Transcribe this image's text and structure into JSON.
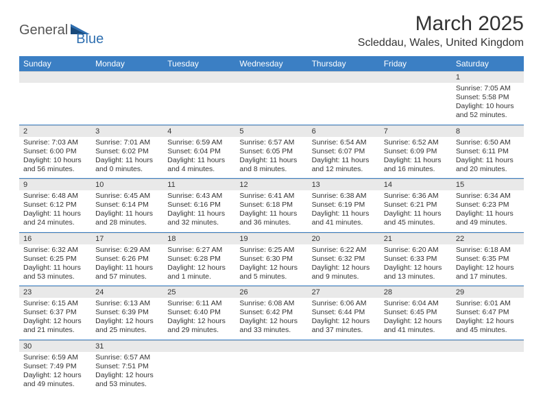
{
  "logo": {
    "text1": "General",
    "text2": "Blue"
  },
  "title": "March 2025",
  "location": "Scleddau, Wales, United Kingdom",
  "colors": {
    "header_bg": "#3b7fc4",
    "header_text": "#ffffff",
    "daynum_bg": "#e9e9e9",
    "row_border": "#3b7fc4",
    "logo_accent": "#2f6fb0"
  },
  "day_headers": [
    "Sunday",
    "Monday",
    "Tuesday",
    "Wednesday",
    "Thursday",
    "Friday",
    "Saturday"
  ],
  "weeks": [
    [
      null,
      null,
      null,
      null,
      null,
      null,
      {
        "n": "1",
        "sr": "Sunrise: 7:05 AM",
        "ss": "Sunset: 5:58 PM",
        "dl1": "Daylight: 10 hours",
        "dl2": "and 52 minutes."
      }
    ],
    [
      {
        "n": "2",
        "sr": "Sunrise: 7:03 AM",
        "ss": "Sunset: 6:00 PM",
        "dl1": "Daylight: 10 hours",
        "dl2": "and 56 minutes."
      },
      {
        "n": "3",
        "sr": "Sunrise: 7:01 AM",
        "ss": "Sunset: 6:02 PM",
        "dl1": "Daylight: 11 hours",
        "dl2": "and 0 minutes."
      },
      {
        "n": "4",
        "sr": "Sunrise: 6:59 AM",
        "ss": "Sunset: 6:04 PM",
        "dl1": "Daylight: 11 hours",
        "dl2": "and 4 minutes."
      },
      {
        "n": "5",
        "sr": "Sunrise: 6:57 AM",
        "ss": "Sunset: 6:05 PM",
        "dl1": "Daylight: 11 hours",
        "dl2": "and 8 minutes."
      },
      {
        "n": "6",
        "sr": "Sunrise: 6:54 AM",
        "ss": "Sunset: 6:07 PM",
        "dl1": "Daylight: 11 hours",
        "dl2": "and 12 minutes."
      },
      {
        "n": "7",
        "sr": "Sunrise: 6:52 AM",
        "ss": "Sunset: 6:09 PM",
        "dl1": "Daylight: 11 hours",
        "dl2": "and 16 minutes."
      },
      {
        "n": "8",
        "sr": "Sunrise: 6:50 AM",
        "ss": "Sunset: 6:11 PM",
        "dl1": "Daylight: 11 hours",
        "dl2": "and 20 minutes."
      }
    ],
    [
      {
        "n": "9",
        "sr": "Sunrise: 6:48 AM",
        "ss": "Sunset: 6:12 PM",
        "dl1": "Daylight: 11 hours",
        "dl2": "and 24 minutes."
      },
      {
        "n": "10",
        "sr": "Sunrise: 6:45 AM",
        "ss": "Sunset: 6:14 PM",
        "dl1": "Daylight: 11 hours",
        "dl2": "and 28 minutes."
      },
      {
        "n": "11",
        "sr": "Sunrise: 6:43 AM",
        "ss": "Sunset: 6:16 PM",
        "dl1": "Daylight: 11 hours",
        "dl2": "and 32 minutes."
      },
      {
        "n": "12",
        "sr": "Sunrise: 6:41 AM",
        "ss": "Sunset: 6:18 PM",
        "dl1": "Daylight: 11 hours",
        "dl2": "and 36 minutes."
      },
      {
        "n": "13",
        "sr": "Sunrise: 6:38 AM",
        "ss": "Sunset: 6:19 PM",
        "dl1": "Daylight: 11 hours",
        "dl2": "and 41 minutes."
      },
      {
        "n": "14",
        "sr": "Sunrise: 6:36 AM",
        "ss": "Sunset: 6:21 PM",
        "dl1": "Daylight: 11 hours",
        "dl2": "and 45 minutes."
      },
      {
        "n": "15",
        "sr": "Sunrise: 6:34 AM",
        "ss": "Sunset: 6:23 PM",
        "dl1": "Daylight: 11 hours",
        "dl2": "and 49 minutes."
      }
    ],
    [
      {
        "n": "16",
        "sr": "Sunrise: 6:32 AM",
        "ss": "Sunset: 6:25 PM",
        "dl1": "Daylight: 11 hours",
        "dl2": "and 53 minutes."
      },
      {
        "n": "17",
        "sr": "Sunrise: 6:29 AM",
        "ss": "Sunset: 6:26 PM",
        "dl1": "Daylight: 11 hours",
        "dl2": "and 57 minutes."
      },
      {
        "n": "18",
        "sr": "Sunrise: 6:27 AM",
        "ss": "Sunset: 6:28 PM",
        "dl1": "Daylight: 12 hours",
        "dl2": "and 1 minute."
      },
      {
        "n": "19",
        "sr": "Sunrise: 6:25 AM",
        "ss": "Sunset: 6:30 PM",
        "dl1": "Daylight: 12 hours",
        "dl2": "and 5 minutes."
      },
      {
        "n": "20",
        "sr": "Sunrise: 6:22 AM",
        "ss": "Sunset: 6:32 PM",
        "dl1": "Daylight: 12 hours",
        "dl2": "and 9 minutes."
      },
      {
        "n": "21",
        "sr": "Sunrise: 6:20 AM",
        "ss": "Sunset: 6:33 PM",
        "dl1": "Daylight: 12 hours",
        "dl2": "and 13 minutes."
      },
      {
        "n": "22",
        "sr": "Sunrise: 6:18 AM",
        "ss": "Sunset: 6:35 PM",
        "dl1": "Daylight: 12 hours",
        "dl2": "and 17 minutes."
      }
    ],
    [
      {
        "n": "23",
        "sr": "Sunrise: 6:15 AM",
        "ss": "Sunset: 6:37 PM",
        "dl1": "Daylight: 12 hours",
        "dl2": "and 21 minutes."
      },
      {
        "n": "24",
        "sr": "Sunrise: 6:13 AM",
        "ss": "Sunset: 6:39 PM",
        "dl1": "Daylight: 12 hours",
        "dl2": "and 25 minutes."
      },
      {
        "n": "25",
        "sr": "Sunrise: 6:11 AM",
        "ss": "Sunset: 6:40 PM",
        "dl1": "Daylight: 12 hours",
        "dl2": "and 29 minutes."
      },
      {
        "n": "26",
        "sr": "Sunrise: 6:08 AM",
        "ss": "Sunset: 6:42 PM",
        "dl1": "Daylight: 12 hours",
        "dl2": "and 33 minutes."
      },
      {
        "n": "27",
        "sr": "Sunrise: 6:06 AM",
        "ss": "Sunset: 6:44 PM",
        "dl1": "Daylight: 12 hours",
        "dl2": "and 37 minutes."
      },
      {
        "n": "28",
        "sr": "Sunrise: 6:04 AM",
        "ss": "Sunset: 6:45 PM",
        "dl1": "Daylight: 12 hours",
        "dl2": "and 41 minutes."
      },
      {
        "n": "29",
        "sr": "Sunrise: 6:01 AM",
        "ss": "Sunset: 6:47 PM",
        "dl1": "Daylight: 12 hours",
        "dl2": "and 45 minutes."
      }
    ],
    [
      {
        "n": "30",
        "sr": "Sunrise: 6:59 AM",
        "ss": "Sunset: 7:49 PM",
        "dl1": "Daylight: 12 hours",
        "dl2": "and 49 minutes."
      },
      {
        "n": "31",
        "sr": "Sunrise: 6:57 AM",
        "ss": "Sunset: 7:51 PM",
        "dl1": "Daylight: 12 hours",
        "dl2": "and 53 minutes."
      },
      null,
      null,
      null,
      null,
      null
    ]
  ]
}
